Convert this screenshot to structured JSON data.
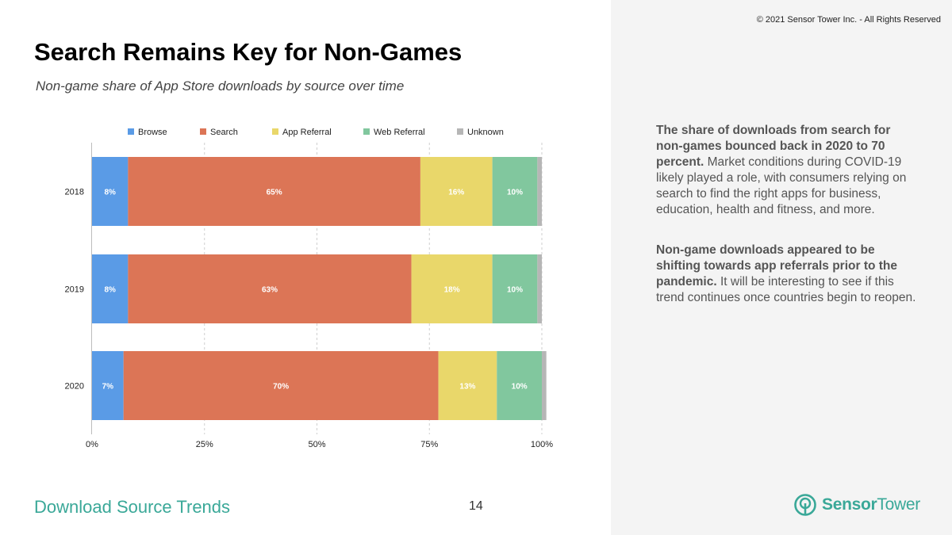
{
  "copyright": "© 2021 Sensor Tower Inc. - All Rights Reserved",
  "title": "Search Remains Key for Non-Games",
  "subtitle": "Non-game share of App Store downloads by source over time",
  "chart_data": {
    "type": "bar",
    "orientation": "horizontal",
    "stacked": true,
    "categories": [
      "2018",
      "2019",
      "2020"
    ],
    "series": [
      {
        "name": "Browse",
        "color": "#5a9be6",
        "values": [
          8,
          8,
          7
        ],
        "labels": [
          "8%",
          "8%",
          "7%"
        ]
      },
      {
        "name": "Search",
        "color": "#dc7556",
        "values": [
          65,
          63,
          70
        ],
        "labels": [
          "65%",
          "63%",
          "70%"
        ]
      },
      {
        "name": "App Referral",
        "color": "#e9d76a",
        "values": [
          16,
          18,
          13
        ],
        "labels": [
          "16%",
          "18%",
          "13%"
        ]
      },
      {
        "name": "Web Referral",
        "color": "#81c79e",
        "values": [
          10,
          10,
          10
        ],
        "labels": [
          "10%",
          "10%",
          "10%"
        ]
      },
      {
        "name": "Unknown",
        "color": "#b6b6b6",
        "values": [
          1,
          1,
          1
        ],
        "labels": [
          "",
          "",
          ""
        ]
      }
    ],
    "xlim": [
      0,
      100
    ],
    "xticks": [
      "0%",
      "25%",
      "50%",
      "75%",
      "100%"
    ],
    "xtick_values": [
      0,
      25,
      50,
      75,
      100
    ],
    "grid": "vertical dashed",
    "legend_position": "top"
  },
  "commentary": {
    "p1_bold": "The share of downloads from search for non-games bounced back in 2020 to 70 percent.",
    "p1_text": " Market conditions during COVID-19 likely played a role, with consumers relying on search to find the right apps for business, education, health and fitness, and more.",
    "p2_bold": "Non-game downloads appeared to be shifting towards app referrals prior to the pandemic.",
    "p2_text": " It will be interesting to see if this trend continues once countries begin to reopen."
  },
  "footer": {
    "section": "Download Source Trends",
    "page_number": "14",
    "logo_part1": "Sensor",
    "logo_part2": "Tower"
  }
}
